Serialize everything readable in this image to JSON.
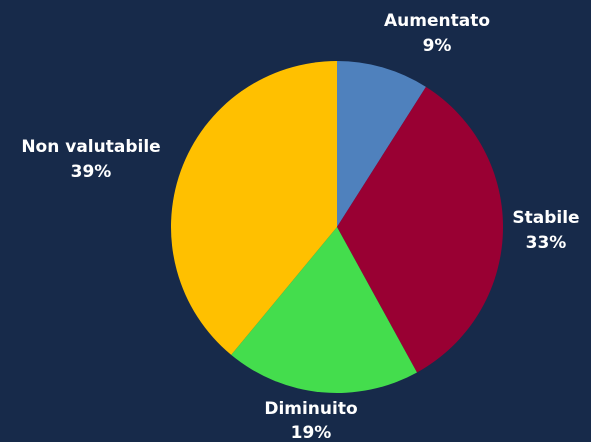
{
  "chart_data": {
    "type": "pie",
    "start_angle_deg": 0,
    "direction": "clockwise",
    "slices": [
      {
        "name": "Aumentato",
        "value": 9,
        "value_label": "9%",
        "color": "#4F81BD"
      },
      {
        "name": "Stabile",
        "value": 33,
        "value_label": "33%",
        "color": "#990033"
      },
      {
        "name": "Diminuito",
        "value": 19,
        "value_label": "19%",
        "color": "#44DD4D"
      },
      {
        "name": "Non valutabile",
        "value": 39,
        "value_label": "39%",
        "color": "#FFC000"
      }
    ],
    "background_color": "#172A4A",
    "label_color": "#FFFFFF",
    "legend": "none"
  }
}
